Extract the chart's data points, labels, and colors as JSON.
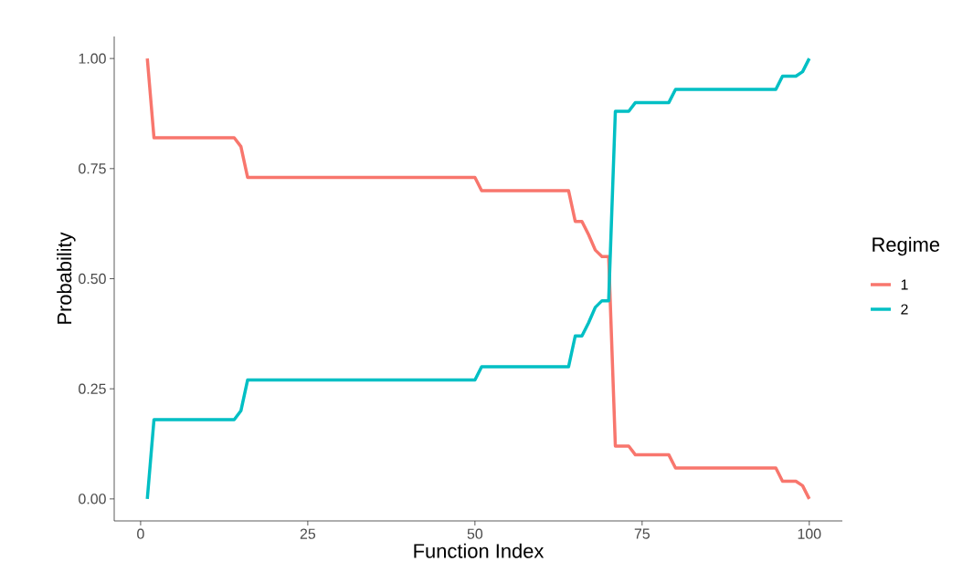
{
  "chart_data": {
    "type": "line",
    "xlabel": "Function Index",
    "ylabel": "Probability",
    "legend_title": "Regime",
    "legend": "right",
    "grid": false,
    "xlim": [
      -3.95,
      104.95
    ],
    "ylim": [
      -0.05,
      1.05
    ],
    "xticks": [
      0,
      25,
      50,
      75,
      100
    ],
    "yticks": [
      {
        "value": 0,
        "label": "0.00"
      },
      {
        "value": 0.25,
        "label": "0.25"
      },
      {
        "value": 0.5,
        "label": "0.50"
      },
      {
        "value": 0.75,
        "label": "0.75"
      },
      {
        "value": 1,
        "label": "1.00"
      }
    ],
    "x": [
      1,
      2,
      14,
      15,
      16,
      50,
      51,
      64,
      65,
      66,
      67,
      68,
      69,
      70,
      71,
      73,
      74,
      79,
      80,
      95,
      96,
      98,
      99,
      100
    ],
    "series": [
      {
        "name": "1",
        "color": "#f8766d",
        "values": [
          1.0,
          0.82,
          0.82,
          0.8,
          0.73,
          0.73,
          0.7,
          0.7,
          0.63,
          0.63,
          0.6,
          0.565,
          0.55,
          0.55,
          0.12,
          0.12,
          0.1,
          0.1,
          0.07,
          0.07,
          0.04,
          0.04,
          0.03,
          0.0
        ]
      },
      {
        "name": "2",
        "color": "#00bfc4",
        "values": [
          0.0,
          0.18,
          0.18,
          0.2,
          0.27,
          0.27,
          0.3,
          0.3,
          0.37,
          0.37,
          0.4,
          0.435,
          0.45,
          0.45,
          0.88,
          0.88,
          0.9,
          0.9,
          0.93,
          0.93,
          0.96,
          0.96,
          0.97,
          1.0
        ]
      }
    ]
  }
}
